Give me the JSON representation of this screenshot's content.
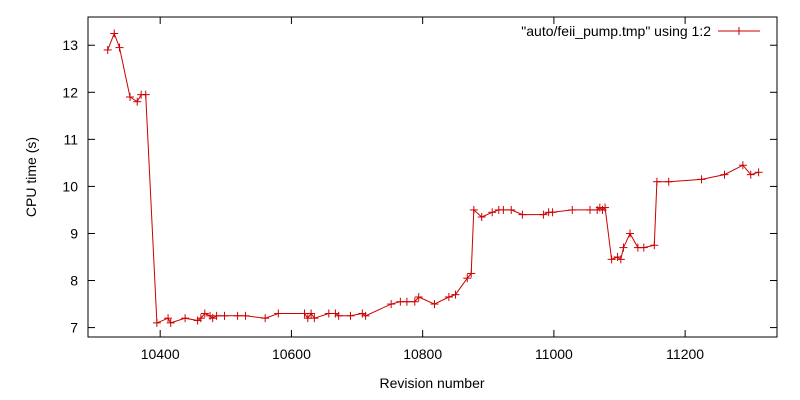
{
  "chart_data": {
    "type": "line",
    "title": "",
    "xlabel": "Revision number",
    "ylabel": "CPU time (s)",
    "xlim": [
      10290,
      11340
    ],
    "ylim": [
      6.8,
      13.6
    ],
    "grid": false,
    "legend_placement": "top-right",
    "x_ticks": [
      10400,
      10600,
      10800,
      11000,
      11200
    ],
    "y_ticks": [
      7,
      8,
      9,
      10,
      11,
      12,
      13
    ],
    "colors": {
      "series": "#cc0000",
      "axes": "#000000"
    },
    "series": [
      {
        "name": "\"auto/feii_pump.tmp\" using 1:2",
        "x": [
          10320,
          10330,
          10338,
          10354,
          10365,
          10371,
          10378,
          10395,
          10412,
          10416,
          10438,
          10457,
          10462,
          10468,
          10476,
          10480,
          10486,
          10498,
          10518,
          10530,
          10560,
          10580,
          10620,
          10625,
          10630,
          10635,
          10657,
          10667,
          10672,
          10690,
          10708,
          10713,
          10752,
          10766,
          10776,
          10788,
          10794,
          10818,
          10840,
          10850,
          10868,
          10874,
          10878,
          10890,
          10906,
          10916,
          10923,
          10935,
          10952,
          10984,
          10992,
          10998,
          11028,
          11055,
          11066,
          11070,
          11074,
          11078,
          11088,
          11097,
          11102,
          11106,
          11116,
          11128,
          11137,
          11153,
          11157,
          11175,
          11225,
          11260,
          11288,
          11300,
          11312
        ],
        "values": [
          12.9,
          13.25,
          12.95,
          11.9,
          11.8,
          11.95,
          11.95,
          7.1,
          7.2,
          7.1,
          7.2,
          7.15,
          7.2,
          7.3,
          7.25,
          7.2,
          7.25,
          7.25,
          7.25,
          7.25,
          7.2,
          7.3,
          7.3,
          7.2,
          7.3,
          7.2,
          7.3,
          7.3,
          7.25,
          7.25,
          7.3,
          7.25,
          7.5,
          7.55,
          7.55,
          7.55,
          7.65,
          7.5,
          7.65,
          7.7,
          8.05,
          8.15,
          9.5,
          9.35,
          9.45,
          9.5,
          9.5,
          9.5,
          9.4,
          9.4,
          9.45,
          9.45,
          9.5,
          9.5,
          9.5,
          9.55,
          9.5,
          9.55,
          8.45,
          8.5,
          8.45,
          8.7,
          9.0,
          8.7,
          8.7,
          8.75,
          10.1,
          10.1,
          10.15,
          10.25,
          10.45,
          10.25,
          10.3
        ]
      }
    ]
  }
}
